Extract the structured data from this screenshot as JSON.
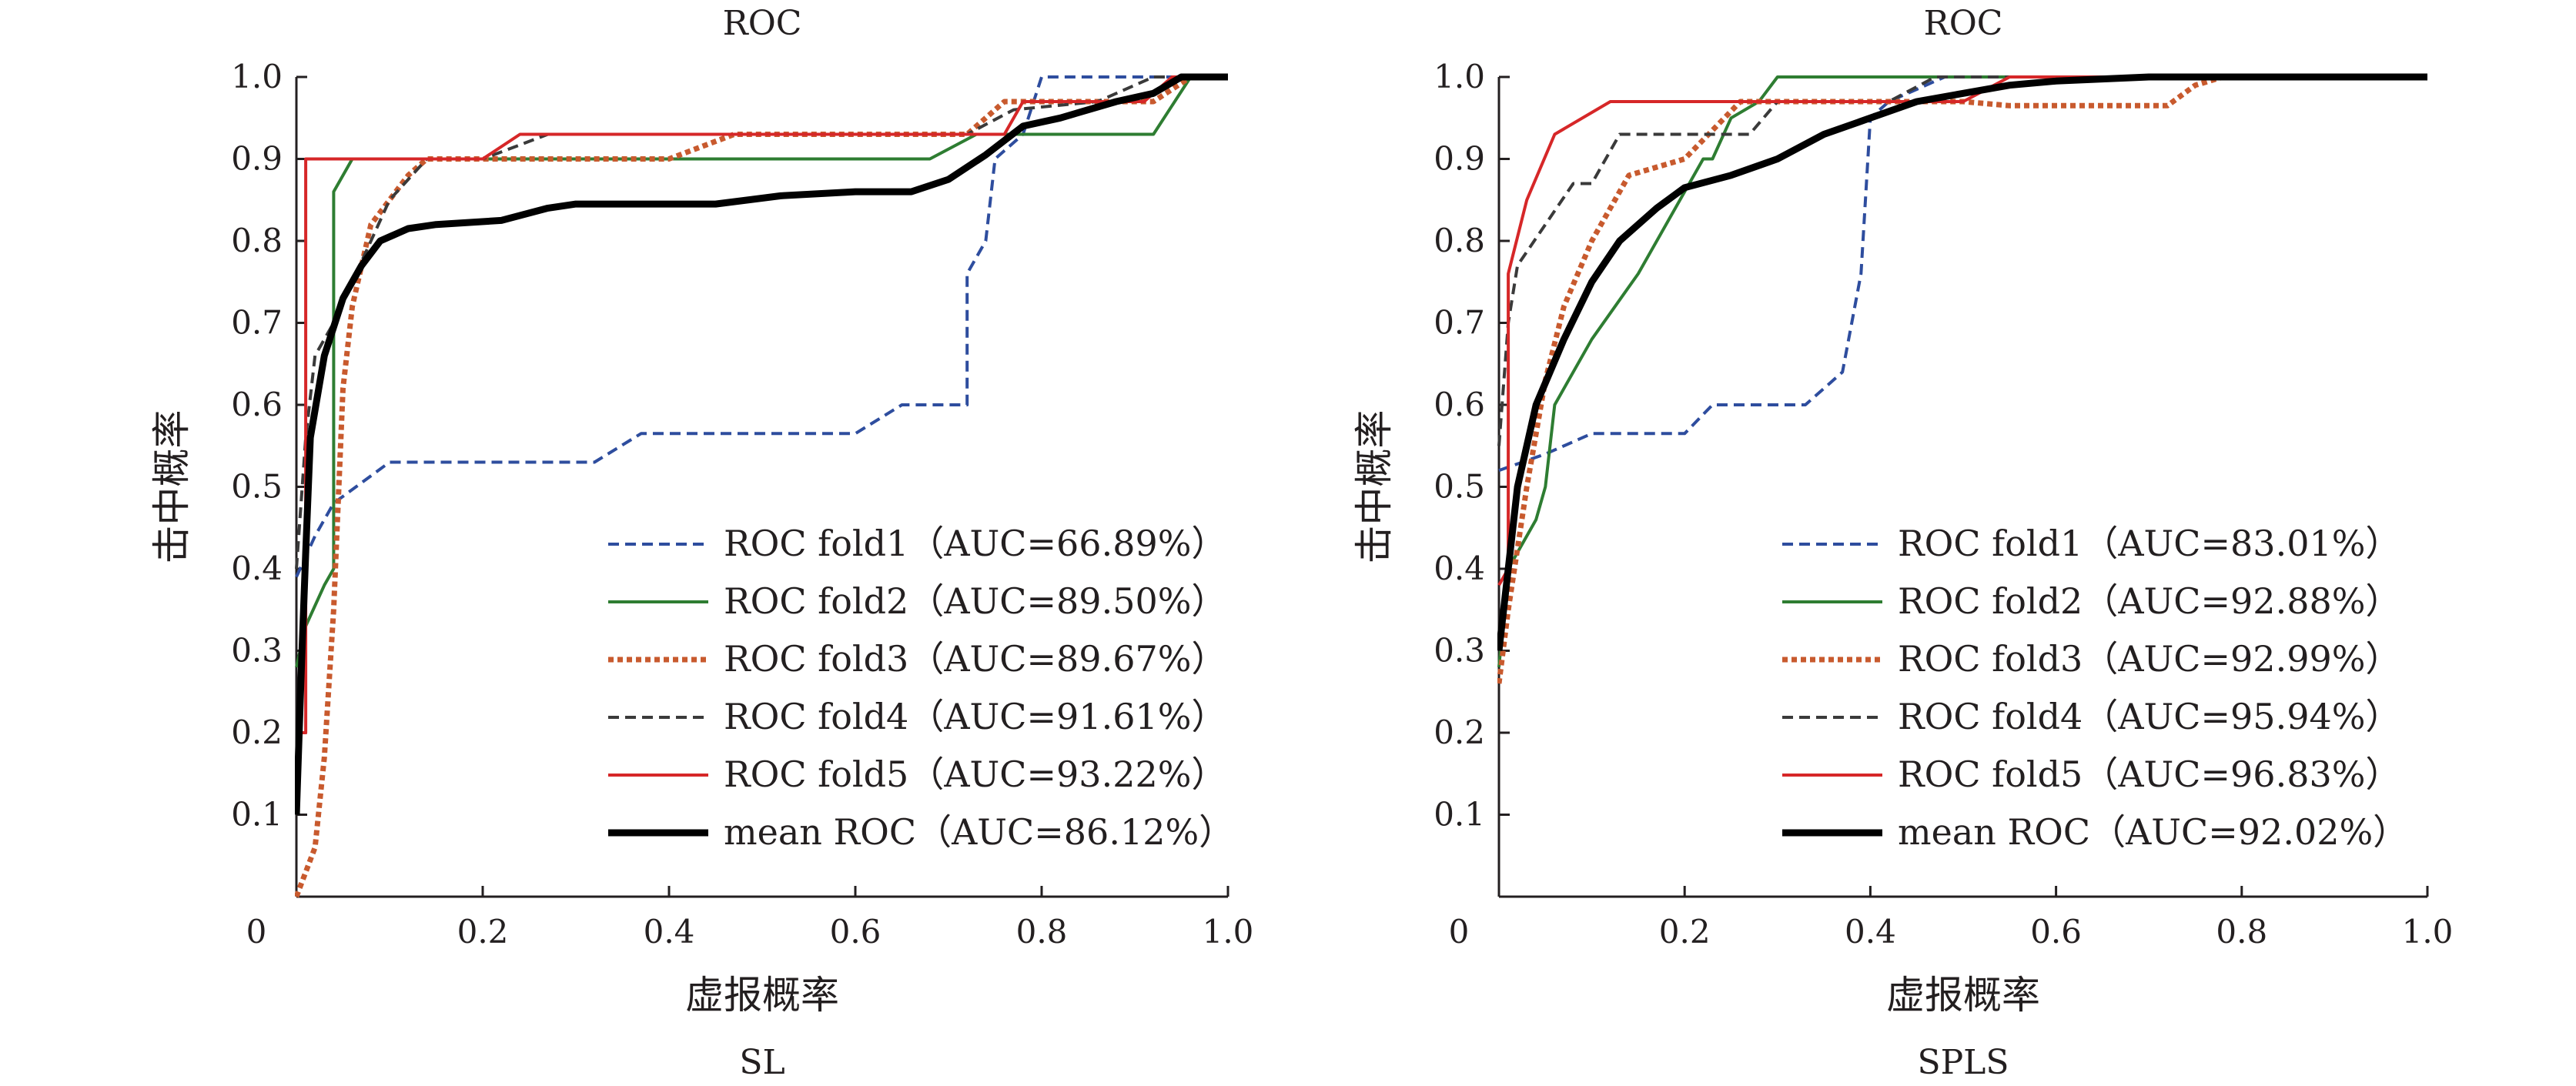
{
  "chart_data": [
    {
      "type": "line",
      "title": "ROC",
      "subtitle": "SL",
      "xlabel": "虚报概率",
      "ylabel": "击中概率",
      "xlim": [
        0,
        1.0
      ],
      "ylim": [
        0,
        1.0
      ],
      "x_ticks": [
        "0",
        "0.2",
        "0.4",
        "0.6",
        "0.8",
        "1.0"
      ],
      "y_ticks": [
        "0.1",
        "0.2",
        "0.3",
        "0.4",
        "0.5",
        "0.6",
        "0.7",
        "0.8",
        "0.9",
        "1.0"
      ],
      "grid": false,
      "legend_position": "bottom-right",
      "series": [
        {
          "name": "ROC fold1",
          "auc_text": "（AUC=66.89%）",
          "color": "#2e4d9e",
          "dash": "dash",
          "width": 4,
          "points": [
            [
              0,
              0.39
            ],
            [
              0.02,
              0.44
            ],
            [
              0.04,
              0.48
            ],
            [
              0.1,
              0.53
            ],
            [
              0.32,
              0.53
            ],
            [
              0.37,
              0.565
            ],
            [
              0.6,
              0.565
            ],
            [
              0.65,
              0.6
            ],
            [
              0.72,
              0.6
            ],
            [
              0.72,
              0.76
            ],
            [
              0.74,
              0.8
            ],
            [
              0.75,
              0.9
            ],
            [
              0.78,
              0.93
            ],
            [
              0.8,
              1.0
            ],
            [
              0.93,
              1.0
            ],
            [
              1.0,
              1.0
            ]
          ]
        },
        {
          "name": "ROC fold2",
          "auc_text": "（AUC=89.50%）",
          "color": "#2e7d32",
          "dash": "solid",
          "width": 4,
          "points": [
            [
              0,
              0.28
            ],
            [
              0.01,
              0.33
            ],
            [
              0.03,
              0.38
            ],
            [
              0.04,
              0.4
            ],
            [
              0.04,
              0.86
            ],
            [
              0.06,
              0.9
            ],
            [
              0.68,
              0.9
            ],
            [
              0.73,
              0.93
            ],
            [
              0.92,
              0.93
            ],
            [
              0.96,
              1.0
            ],
            [
              1.0,
              1.0
            ]
          ]
        },
        {
          "name": "ROC fold3",
          "auc_text": "（AUC=89.67%）",
          "color": "#c85a2e",
          "dash": "dot",
          "width": 7,
          "points": [
            [
              0,
              0.0
            ],
            [
              0.02,
              0.06
            ],
            [
              0.03,
              0.17
            ],
            [
              0.04,
              0.35
            ],
            [
              0.05,
              0.62
            ],
            [
              0.06,
              0.72
            ],
            [
              0.08,
              0.82
            ],
            [
              0.12,
              0.88
            ],
            [
              0.14,
              0.9
            ],
            [
              0.4,
              0.9
            ],
            [
              0.47,
              0.93
            ],
            [
              0.72,
              0.93
            ],
            [
              0.76,
              0.97
            ],
            [
              0.86,
              0.97
            ],
            [
              0.92,
              0.97
            ],
            [
              0.96,
              1.0
            ],
            [
              1.0,
              1.0
            ]
          ]
        },
        {
          "name": "ROC fold4",
          "auc_text": "（AUC=91.61%）",
          "color": "#3a3a3a",
          "dash": "dash",
          "width": 4,
          "points": [
            [
              0,
              0.4
            ],
            [
              0.01,
              0.56
            ],
            [
              0.02,
              0.66
            ],
            [
              0.04,
              0.7
            ],
            [
              0.06,
              0.75
            ],
            [
              0.1,
              0.85
            ],
            [
              0.14,
              0.9
            ],
            [
              0.2,
              0.9
            ],
            [
              0.27,
              0.93
            ],
            [
              0.72,
              0.93
            ],
            [
              0.77,
              0.96
            ],
            [
              0.86,
              0.97
            ],
            [
              0.92,
              1.0
            ],
            [
              1.0,
              1.0
            ]
          ]
        },
        {
          "name": "ROC fold5",
          "auc_text": "（AUC=93.22%）",
          "color": "#d62728",
          "dash": "solid",
          "width": 4,
          "points": [
            [
              0,
              0.2
            ],
            [
              0.01,
              0.2
            ],
            [
              0.01,
              0.9
            ],
            [
              0.2,
              0.9
            ],
            [
              0.24,
              0.93
            ],
            [
              0.76,
              0.93
            ],
            [
              0.78,
              0.97
            ],
            [
              0.91,
              0.97
            ],
            [
              0.94,
              1.0
            ],
            [
              1.0,
              1.0
            ]
          ]
        },
        {
          "name": "mean ROC",
          "auc_text": "（AUC=86.12%）",
          "color": "#000000",
          "dash": "solid",
          "width": 9,
          "points": [
            [
              0,
              0.1
            ],
            [
              0.005,
              0.27
            ],
            [
              0.01,
              0.42
            ],
            [
              0.015,
              0.56
            ],
            [
              0.03,
              0.66
            ],
            [
              0.05,
              0.73
            ],
            [
              0.07,
              0.77
            ],
            [
              0.09,
              0.8
            ],
            [
              0.12,
              0.815
            ],
            [
              0.15,
              0.82
            ],
            [
              0.22,
              0.825
            ],
            [
              0.27,
              0.84
            ],
            [
              0.3,
              0.845
            ],
            [
              0.45,
              0.845
            ],
            [
              0.52,
              0.855
            ],
            [
              0.6,
              0.86
            ],
            [
              0.66,
              0.86
            ],
            [
              0.7,
              0.875
            ],
            [
              0.74,
              0.905
            ],
            [
              0.78,
              0.94
            ],
            [
              0.82,
              0.95
            ],
            [
              0.88,
              0.97
            ],
            [
              0.92,
              0.98
            ],
            [
              0.95,
              1.0
            ],
            [
              1.0,
              1.0
            ]
          ]
        }
      ]
    },
    {
      "type": "line",
      "title": "ROC",
      "subtitle": "SPLS",
      "xlabel": "虚报概率",
      "ylabel": "击中概率",
      "xlim": [
        0,
        1.0
      ],
      "ylim": [
        0,
        1.0
      ],
      "x_ticks": [
        "0",
        "0.2",
        "0.4",
        "0.6",
        "0.8",
        "1.0"
      ],
      "y_ticks": [
        "0.1",
        "0.2",
        "0.3",
        "0.4",
        "0.5",
        "0.6",
        "0.7",
        "0.8",
        "0.9",
        "1.0"
      ],
      "grid": false,
      "legend_position": "bottom-right",
      "series": [
        {
          "name": "ROC fold1",
          "auc_text": "（AUC=83.01%）",
          "color": "#2e4d9e",
          "dash": "dash",
          "width": 4,
          "points": [
            [
              0,
              0.52
            ],
            [
              0.05,
              0.54
            ],
            [
              0.1,
              0.565
            ],
            [
              0.2,
              0.565
            ],
            [
              0.23,
              0.6
            ],
            [
              0.33,
              0.6
            ],
            [
              0.37,
              0.64
            ],
            [
              0.39,
              0.76
            ],
            [
              0.4,
              0.95
            ],
            [
              0.42,
              0.97
            ],
            [
              0.48,
              1.0
            ],
            [
              1.0,
              1.0
            ]
          ]
        },
        {
          "name": "ROC fold2",
          "auc_text": "（AUC=92.88%）",
          "color": "#2e7d32",
          "dash": "solid",
          "width": 4,
          "points": [
            [
              0,
              0.28
            ],
            [
              0.01,
              0.4
            ],
            [
              0.04,
              0.46
            ],
            [
              0.05,
              0.5
            ],
            [
              0.06,
              0.6
            ],
            [
              0.1,
              0.68
            ],
            [
              0.15,
              0.76
            ],
            [
              0.2,
              0.86
            ],
            [
              0.22,
              0.9
            ],
            [
              0.23,
              0.9
            ],
            [
              0.25,
              0.95
            ],
            [
              0.28,
              0.97
            ],
            [
              0.3,
              1.0
            ],
            [
              1.0,
              1.0
            ]
          ]
        },
        {
          "name": "ROC fold3",
          "auc_text": "（AUC=92.99%）",
          "color": "#c85a2e",
          "dash": "dot",
          "width": 7,
          "points": [
            [
              0,
              0.26
            ],
            [
              0.01,
              0.35
            ],
            [
              0.03,
              0.5
            ],
            [
              0.05,
              0.63
            ],
            [
              0.07,
              0.72
            ],
            [
              0.1,
              0.8
            ],
            [
              0.14,
              0.88
            ],
            [
              0.2,
              0.9
            ],
            [
              0.26,
              0.97
            ],
            [
              0.5,
              0.97
            ],
            [
              0.55,
              0.965
            ],
            [
              0.72,
              0.965
            ],
            [
              0.75,
              0.99
            ],
            [
              0.78,
              1.0
            ],
            [
              1.0,
              1.0
            ]
          ]
        },
        {
          "name": "ROC fold4",
          "auc_text": "（AUC=95.94%）",
          "color": "#3a3a3a",
          "dash": "dash",
          "width": 4,
          "points": [
            [
              0,
              0.55
            ],
            [
              0.01,
              0.7
            ],
            [
              0.02,
              0.77
            ],
            [
              0.05,
              0.82
            ],
            [
              0.08,
              0.87
            ],
            [
              0.1,
              0.87
            ],
            [
              0.13,
              0.93
            ],
            [
              0.27,
              0.93
            ],
            [
              0.3,
              0.97
            ],
            [
              0.42,
              0.97
            ],
            [
              0.47,
              1.0
            ],
            [
              1.0,
              1.0
            ]
          ]
        },
        {
          "name": "ROC fold5",
          "auc_text": "（AUC=96.83%）",
          "color": "#d62728",
          "dash": "solid",
          "width": 4,
          "points": [
            [
              0,
              0.38
            ],
            [
              0.01,
              0.4
            ],
            [
              0.01,
              0.76
            ],
            [
              0.03,
              0.85
            ],
            [
              0.06,
              0.93
            ],
            [
              0.12,
              0.97
            ],
            [
              0.5,
              0.97
            ],
            [
              0.55,
              1.0
            ],
            [
              1.0,
              1.0
            ]
          ]
        },
        {
          "name": "mean ROC",
          "auc_text": "（AUC=92.02%）",
          "color": "#000000",
          "dash": "solid",
          "width": 9,
          "points": [
            [
              0,
              0.3
            ],
            [
              0.01,
              0.4
            ],
            [
              0.02,
              0.5
            ],
            [
              0.04,
              0.6
            ],
            [
              0.07,
              0.68
            ],
            [
              0.1,
              0.75
            ],
            [
              0.13,
              0.8
            ],
            [
              0.17,
              0.84
            ],
            [
              0.2,
              0.865
            ],
            [
              0.25,
              0.88
            ],
            [
              0.3,
              0.9
            ],
            [
              0.35,
              0.93
            ],
            [
              0.4,
              0.95
            ],
            [
              0.45,
              0.97
            ],
            [
              0.5,
              0.98
            ],
            [
              0.55,
              0.99
            ],
            [
              0.6,
              0.995
            ],
            [
              0.7,
              1.0
            ],
            [
              1.0,
              1.0
            ]
          ]
        }
      ]
    }
  ]
}
